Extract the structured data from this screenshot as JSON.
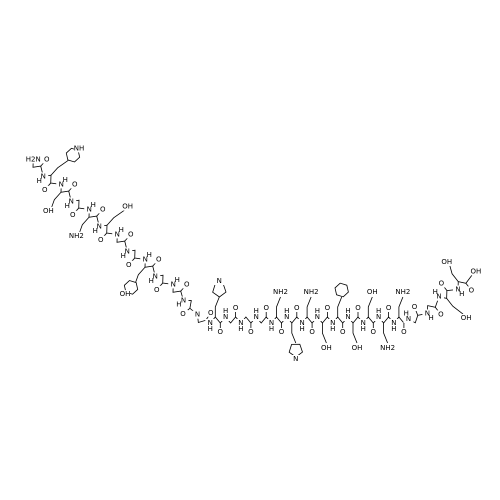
{
  "molecule": {
    "residues": [
      {
        "n": "H2N",
        "o": "O"
      },
      {
        "n": "N",
        "h": "H",
        "o": "O",
        "side": "NH"
      },
      {
        "n": "N",
        "h": "H",
        "o": "O",
        "side": "OH"
      },
      {
        "n": "N",
        "h": "H",
        "o": "O"
      },
      {
        "n": "N",
        "h": "H",
        "o": "O",
        "side": "NH2"
      },
      {
        "n": "N",
        "h": "H",
        "o": "O",
        "side": "OH"
      },
      {
        "n": "N",
        "h": "H",
        "o": "O"
      },
      {
        "n": "N",
        "h": "H",
        "o": "O"
      },
      {
        "n": "N",
        "h": "H",
        "o": "O",
        "side": "OH"
      },
      {
        "n": "N",
        "h": "H",
        "o": "O"
      },
      {
        "n": "N",
        "h": "H",
        "o": "O"
      },
      {
        "n": "N",
        "h": "H",
        "o": "O"
      },
      {
        "n": "N",
        "o": "O"
      },
      {
        "n": "N",
        "h": "H",
        "o": "O",
        "side": "N"
      },
      {
        "n": "N",
        "h": "H",
        "o": "O"
      },
      {
        "n": "N",
        "h": "H",
        "o": "O"
      },
      {
        "n": "N",
        "h": "H",
        "o": "O"
      },
      {
        "n": "N",
        "h": "H",
        "o": "O",
        "side": "NH2"
      },
      {
        "n": "N",
        "h": "H",
        "o": "O",
        "side": "N"
      },
      {
        "n": "N",
        "h": "H",
        "o": "O",
        "side": "NH2"
      },
      {
        "n": "N",
        "h": "H",
        "o": "O",
        "side": "OH"
      },
      {
        "n": "N",
        "h": "H",
        "o": "O"
      },
      {
        "n": "N",
        "h": "H",
        "o": "O",
        "side": "OH"
      },
      {
        "n": "N",
        "h": "H",
        "o": "O",
        "side": "OH"
      },
      {
        "n": "N",
        "h": "H",
        "o": "O",
        "side": "NH2"
      },
      {
        "n": "N",
        "h": "H",
        "o": "O",
        "side": "NH2"
      },
      {
        "n": "N",
        "h": "H",
        "o": "O"
      },
      {
        "n": "N",
        "h": "H",
        "o": "O"
      },
      {
        "n": "N",
        "h": "H",
        "o": "O",
        "side": "OH"
      },
      {
        "n": "N",
        "h": "H",
        "o": "O",
        "side": "OH"
      }
    ],
    "c_terminus": "OH"
  }
}
